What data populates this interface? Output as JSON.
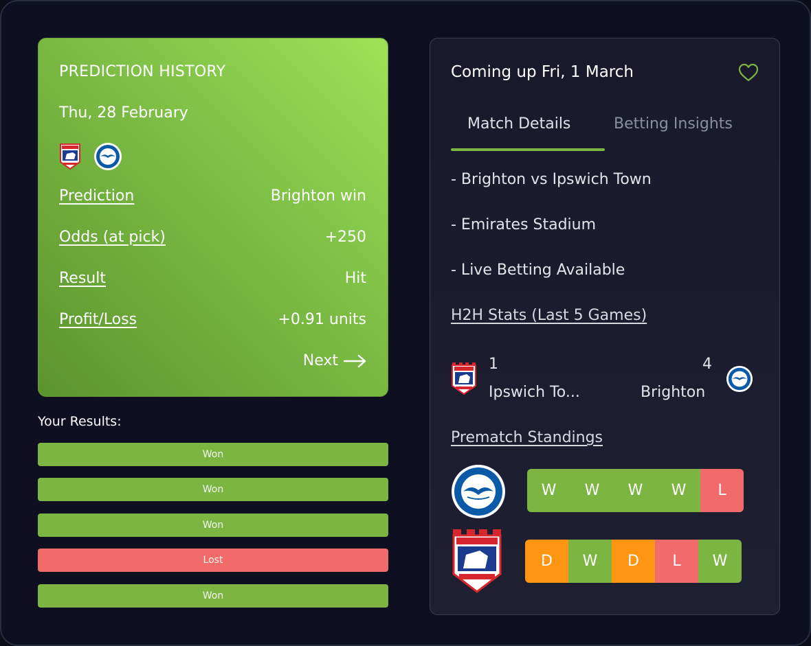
{
  "prediction": {
    "title": "PREDICTION HISTORY",
    "date": "Thu, 28 February",
    "rows": [
      {
        "label": "Prediction",
        "value": "Brighton win"
      },
      {
        "label": "Odds (at pick)",
        "value": "+250"
      },
      {
        "label": "Result",
        "value": "Hit"
      },
      {
        "label": "Profit/Loss",
        "value": "+0.91 units"
      }
    ],
    "next_label": "Next"
  },
  "results": {
    "title": "Your Results:",
    "items": [
      "Won",
      "Won",
      "Won",
      "Lost",
      "Won"
    ]
  },
  "match": {
    "title": "Coming up Fri, 1 March",
    "tabs": [
      "Match Details",
      "Betting Insights"
    ],
    "details": [
      "- Brighton vs Ipswich Town",
      "- Emirates Stadium",
      "- Live Betting Available"
    ],
    "h2h_title": "H2H Stats (Last 5 Games)",
    "h2h": {
      "home": {
        "score": "1",
        "name": "Ipswich To..."
      },
      "away": {
        "score": "4",
        "name": "Brighton"
      }
    },
    "standings_title": "Prematch Standings",
    "standings": [
      {
        "team": "Brighton",
        "form": [
          "W",
          "W",
          "W",
          "W",
          "L"
        ]
      },
      {
        "team": "Ipswich Town",
        "form": [
          "D",
          "W",
          "D",
          "L",
          "W"
        ]
      }
    ]
  },
  "colors": {
    "won": "#7db543",
    "lost": "#f26b6b",
    "draw": "#ff9511",
    "accent": "#7db543"
  }
}
